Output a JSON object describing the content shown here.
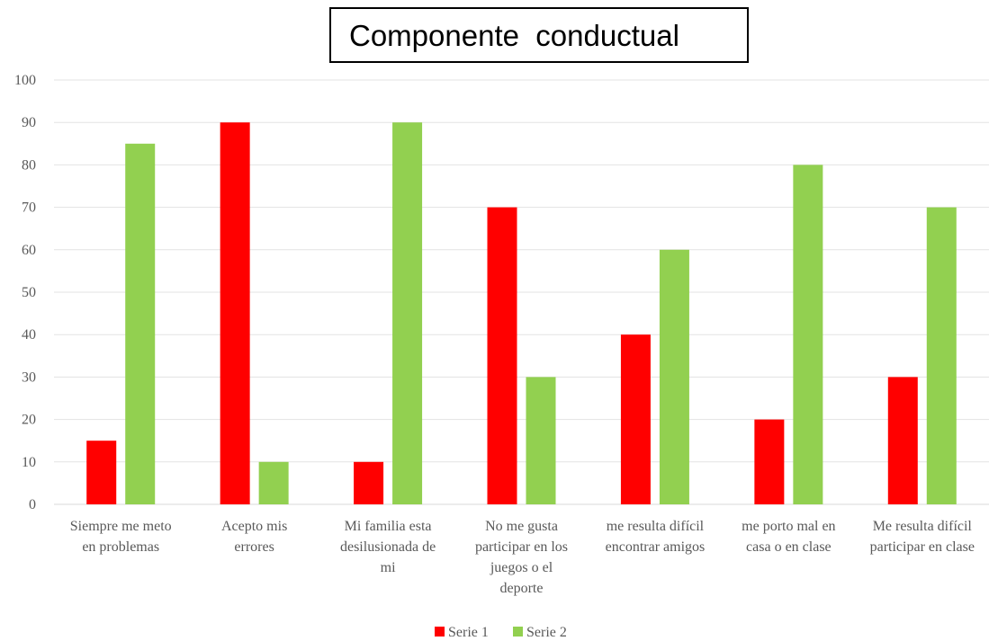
{
  "chart_data": {
    "type": "bar",
    "title": "Componente  conductual",
    "categories": [
      "Siempre me meto en problemas",
      "Acepto mis errores",
      "Mi familia esta desilusionada de mi",
      "No me gusta participar en los juegos o el deporte",
      "me resulta difícil encontrar amigos",
      "me porto mal en casa o en clase",
      "Me resulta difícil participar en clase"
    ],
    "category_lines": [
      [
        "Siempre me meto",
        "en problemas"
      ],
      [
        "Acepto mis",
        "errores"
      ],
      [
        "Mi familia esta",
        "desilusionada de",
        "mi"
      ],
      [
        "No me gusta",
        "participar en los",
        "juegos o el",
        "deporte"
      ],
      [
        "me resulta difícil",
        "encontrar amigos"
      ],
      [
        "me porto mal en",
        "casa o en clase"
      ],
      [
        "Me resulta difícil",
        "participar en clase"
      ]
    ],
    "series": [
      {
        "name": "Serie 1",
        "color": "#ff0000",
        "values": [
          15,
          90,
          10,
          70,
          40,
          20,
          30
        ]
      },
      {
        "name": "Serie 2",
        "color": "#92d050",
        "values": [
          85,
          10,
          90,
          30,
          60,
          80,
          70
        ]
      }
    ],
    "ylim": [
      0,
      100
    ],
    "yticks": [
      0,
      10,
      20,
      30,
      40,
      50,
      60,
      70,
      80,
      90,
      100
    ],
    "grid": true,
    "legend_position": "bottom"
  }
}
